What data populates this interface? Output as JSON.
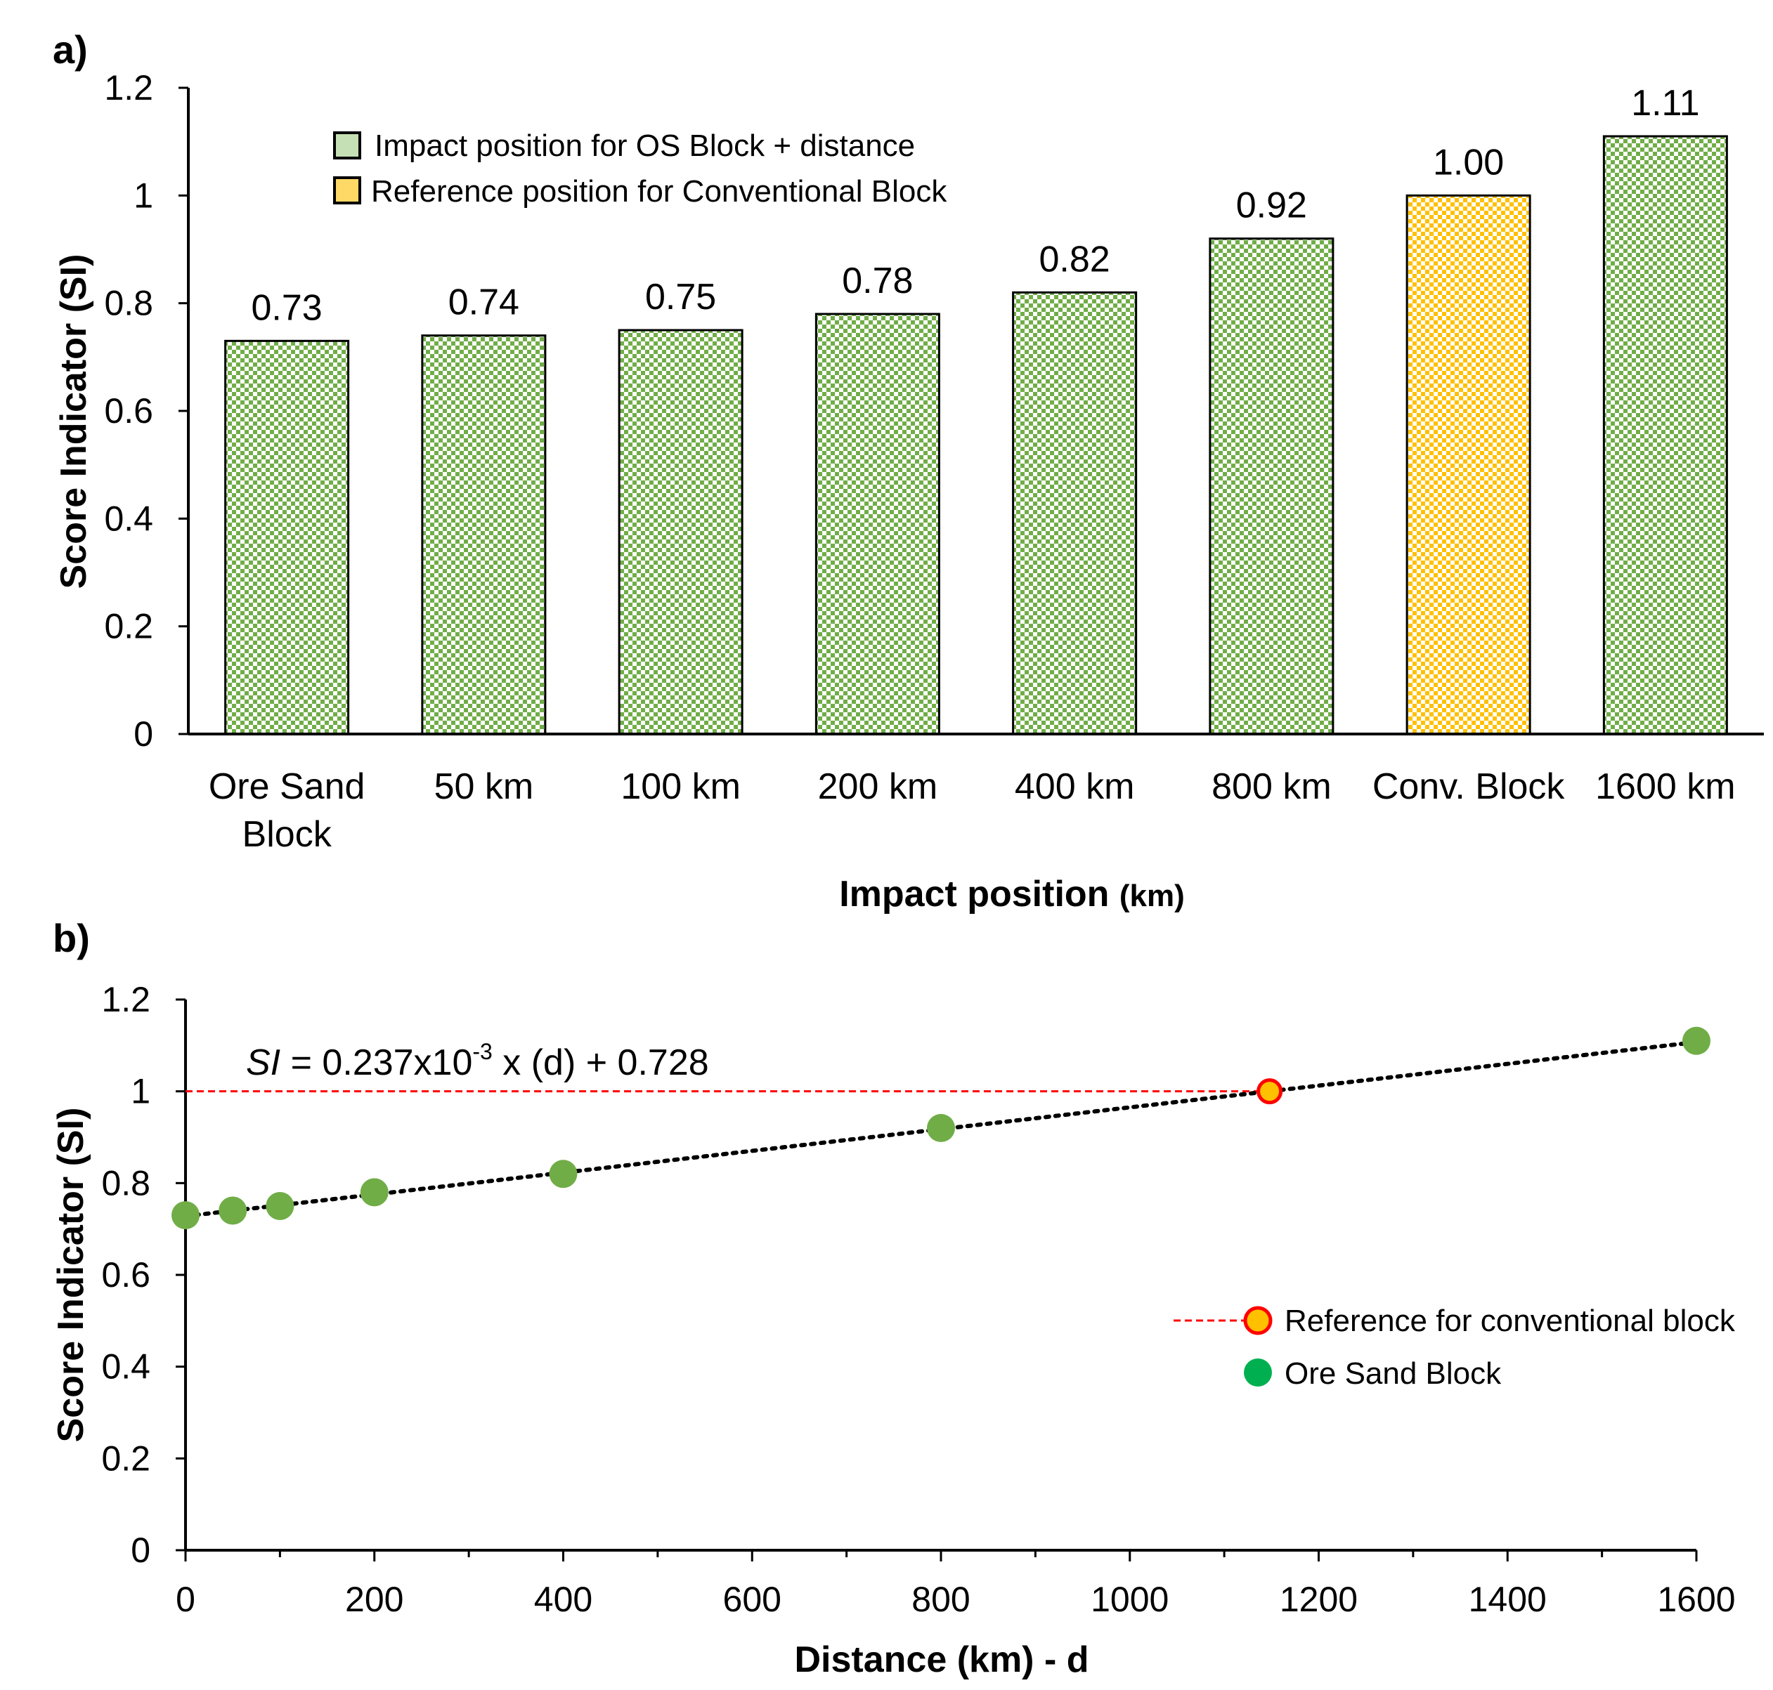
{
  "chart_data": [
    {
      "panel_label": "a)",
      "type": "bar",
      "categories": [
        "Ore Sand Block",
        "50 km",
        "100 km",
        "200 km",
        "400 km",
        "800 km",
        "Conv. Block",
        "1600 km"
      ],
      "category_lines": [
        [
          "Ore Sand",
          "Block"
        ],
        [
          "50 km"
        ],
        [
          "100 km"
        ],
        [
          "200 km"
        ],
        [
          "400 km"
        ],
        [
          "800 km"
        ],
        [
          "Conv. Block"
        ],
        [
          "1600 km"
        ]
      ],
      "values": [
        0.73,
        0.74,
        0.75,
        0.78,
        0.82,
        0.92,
        1.0,
        1.11
      ],
      "data_labels": [
        "0.73",
        "0.74",
        "0.75",
        "0.78",
        "0.82",
        "0.92",
        "1.00",
        "1.11"
      ],
      "series_of_bar": [
        "os",
        "os",
        "os",
        "os",
        "os",
        "os",
        "ref",
        "os"
      ],
      "legend": [
        {
          "key": "os",
          "label": "Impact position for OS Block + distance",
          "color": "#70ad47"
        },
        {
          "key": "ref",
          "label": "Reference position for Conventional Block",
          "color": "#ffc000"
        }
      ],
      "legend_position": "top-left",
      "xlabel": "Impact position",
      "xlabel_unit": "(km)",
      "ylabel": "Score Indicator (SI)",
      "ylim": [
        0,
        1.2
      ],
      "yticks": [
        "0",
        "0.2",
        "0.4",
        "0.6",
        "0.8",
        "1",
        "1.2"
      ],
      "grid": false
    },
    {
      "panel_label": "b)",
      "type": "scatter",
      "xlabel": "Distance (km) - d",
      "ylabel": "Score Indicator (SI)",
      "xlim": [
        0,
        1600
      ],
      "ylim": [
        0,
        1.2
      ],
      "xticks": [
        "0",
        "200",
        "400",
        "600",
        "800",
        "1000",
        "1200",
        "1400",
        "1600"
      ],
      "yticks": [
        "0",
        "0.2",
        "0.4",
        "0.6",
        "0.8",
        "1",
        "1.2"
      ],
      "series": [
        {
          "name": "Ore Sand Block",
          "color": "#70ad47",
          "legend_color": "#00b050",
          "x": [
            0,
            50,
            100,
            200,
            400,
            800,
            1600
          ],
          "y": [
            0.73,
            0.74,
            0.75,
            0.78,
            0.82,
            0.92,
            1.11
          ]
        },
        {
          "name": "Reference for conventional block",
          "color": "#ffc000",
          "stroke": "#ff0000",
          "x": [
            1148
          ],
          "y": [
            1.0
          ]
        }
      ],
      "trendline": {
        "slope": 0.000237,
        "intercept": 0.728,
        "equation_prefix": "SI",
        "equation_mid": " = 0.237x10",
        "equation_exp": "-3",
        "equation_suffix": " x (d) + 0.728"
      },
      "reference_line": {
        "y": 1.0,
        "color": "#ff0000"
      },
      "legend_position": "right",
      "grid": false
    }
  ]
}
